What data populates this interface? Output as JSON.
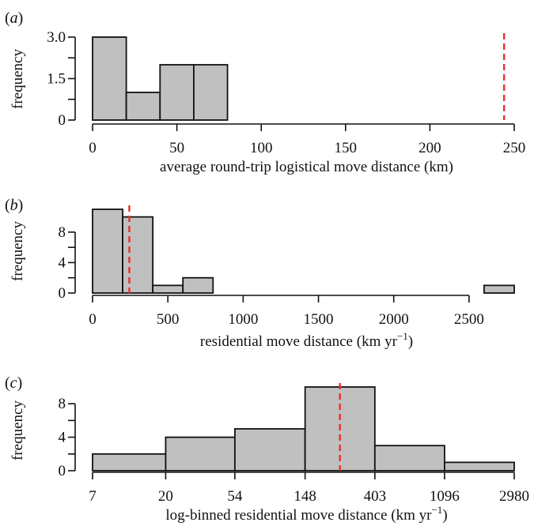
{
  "chart_data": [
    {
      "type": "bar",
      "panel_label": "(a)",
      "xlabel": "average round-trip logistical move distance (km)",
      "ylabel": "frequency",
      "xlim": [
        0,
        250
      ],
      "ylim": [
        0,
        3
      ],
      "x_ticks": [
        "0",
        "50",
        "100",
        "150",
        "200",
        "250"
      ],
      "y_ticks": [
        "0",
        "1.5",
        "3.0"
      ],
      "bins": [
        {
          "from": 0,
          "to": 20,
          "count": 3
        },
        {
          "from": 20,
          "to": 40,
          "count": 1
        },
        {
          "from": 40,
          "to": 60,
          "count": 2
        },
        {
          "from": 60,
          "to": 80,
          "count": 2
        }
      ],
      "reference_line_x": 244,
      "reference_line_color": "#e8312c"
    },
    {
      "type": "bar",
      "panel_label": "(b)",
      "xlabel": "residential move distance (km yr",
      "xlabel_superscript": "−1",
      "xlabel_suffix": ")",
      "ylabel": "frequency",
      "xlim": [
        0,
        2800
      ],
      "ylim": [
        0,
        11
      ],
      "x_ticks": [
        "0",
        "500",
        "1000",
        "1500",
        "2000",
        "2500"
      ],
      "y_ticks": [
        "0",
        "4",
        "8"
      ],
      "bins": [
        {
          "from": 0,
          "to": 200,
          "count": 11
        },
        {
          "from": 200,
          "to": 400,
          "count": 10
        },
        {
          "from": 400,
          "to": 600,
          "count": 1
        },
        {
          "from": 600,
          "to": 800,
          "count": 2
        },
        {
          "from": 2600,
          "to": 2800,
          "count": 1
        }
      ],
      "reference_line_x": 244,
      "reference_line_color": "#e8312c"
    },
    {
      "type": "bar",
      "panel_label": "(c)",
      "xlabel": "log-binned residential move distance (km yr",
      "xlabel_superscript": "−1",
      "xlabel_suffix": ")",
      "ylabel": "frequency",
      "x_scale": "log",
      "x_ticks": [
        "7",
        "20",
        "54",
        "148",
        "403",
        "1096",
        "2980"
      ],
      "ylim": [
        0,
        10
      ],
      "y_ticks": [
        "0",
        "4",
        "8"
      ],
      "bins": [
        {
          "from": 7,
          "to": 20,
          "count": 2
        },
        {
          "from": 20,
          "to": 54,
          "count": 4
        },
        {
          "from": 54,
          "to": 148,
          "count": 5
        },
        {
          "from": 148,
          "to": 403,
          "count": 10
        },
        {
          "from": 403,
          "to": 1096,
          "count": 3
        },
        {
          "from": 1096,
          "to": 2980,
          "count": 1
        }
      ],
      "reference_line_x": 244,
      "reference_line_color": "#e8312c"
    }
  ]
}
